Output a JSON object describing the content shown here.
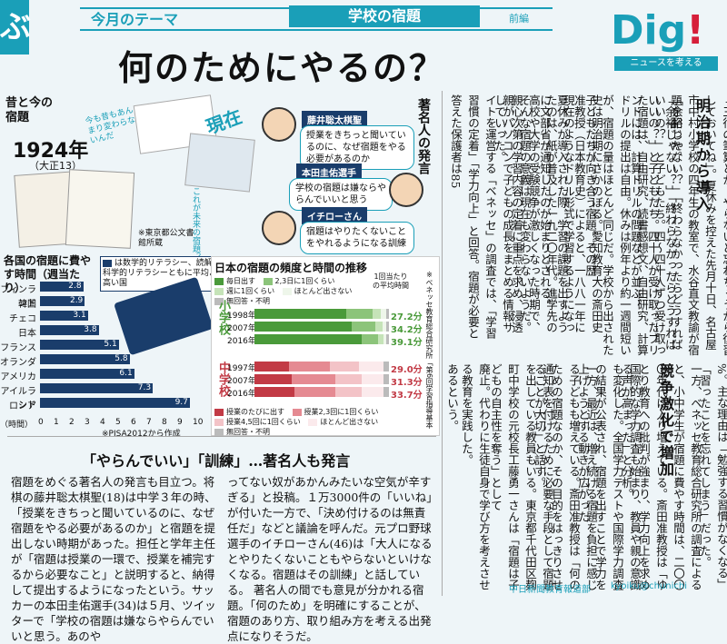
{
  "corner_char": "ぶ",
  "theme_label": "今月のテーマ",
  "topic_label": "学校の宿題",
  "part_label": "前編",
  "headline": "何のためにやるの？",
  "brand": {
    "name_main": "Di",
    "name_accent": "g",
    "bang": "!",
    "sub": "ニュースを考える"
  },
  "then_now": {
    "title": "昔と今の宿題",
    "year": "1924年",
    "era": "（大正13）",
    "now": "現在",
    "note_top": "今も昔もあんまり変わらないんだ",
    "note_future": "これが未来の宿題？",
    "source": "※東京都公文書館所蔵"
  },
  "famous": {
    "title": "著名人の発言",
    "people": [
      {
        "name": "藤井聡太棋聖",
        "quote": "授業をきちっと聞いているのに、なぜ宿題をやる必要があるのか"
      },
      {
        "name": "本田圭佑選手",
        "quote": "学校の宿題は嫌ならやらんでいいと思う"
      },
      {
        "name": "イチローさん",
        "quote": "宿題はやりたくないことをやれるようになる訓練"
      }
    ]
  },
  "intl_chart": {
    "title": "各国の宿題に費やす時間（週当たり）",
    "legend": "は数学的リテラシー、読解力、科学的リテラシーともに平均より高い国",
    "unit": "（時間）",
    "source": "※PISA2012から作成",
    "axis_ticks": [
      "0",
      "1",
      "2",
      "3",
      "4",
      "5",
      "6",
      "7",
      "8",
      "9",
      "10"
    ]
  },
  "chart_data": [
    {
      "type": "bar",
      "title": "各国の宿題に費やす時間（週当たり）",
      "orientation": "horizontal",
      "categories": [
        "フィンランド",
        "韓国",
        "チェコ",
        "日本",
        "フランス",
        "オランダ",
        "アメリカ",
        "アイルランド",
        "ロシア"
      ],
      "values": [
        2.8,
        2.9,
        3.1,
        3.8,
        5.1,
        5.8,
        6.1,
        7.3,
        9.7
      ],
      "labels": [
        "2.8",
        "2.9",
        "3.1",
        "3.8",
        "5.1",
        "5.8",
        "6.1",
        "7.3",
        "9.7"
      ],
      "xlabel": "（時間）",
      "xlim": [
        0,
        10
      ]
    },
    {
      "type": "bar",
      "title": "日本の宿題の頻度と時間の推移",
      "stacked": true,
      "groups": [
        {
          "name": "小学校",
          "years": [
            "1998年",
            "2007年",
            "2016年"
          ],
          "avg_minutes": [
            "27.2分",
            "34.2分",
            "39.1分"
          ]
        },
        {
          "name": "中学校",
          "years": [
            "1997年",
            "2007年",
            "2016年"
          ],
          "avg_minutes": [
            "29.0分",
            "31.3分",
            "33.7分"
          ]
        }
      ],
      "legend_elementary": [
        "毎日出す",
        "2,3日に1回くらい",
        "週に1回くらい",
        "ほとんど出さない",
        "無回答・不明"
      ],
      "legend_junior": [
        "授業のたびに出す",
        "授業2,3回に1回くらい",
        "授業4,5回に1回くらい",
        "ほとんど出さない",
        "無回答・不明"
      ],
      "avg_header": "1回当たりの平均時間",
      "note": "※ベネッセ教育総合研究所「第6回学習指導基本調査」から作成"
    }
  ],
  "bottom_article": {
    "headline": "「やらんでいい」「訓練」…著名人も発言",
    "paragraphs": [
      "宿題をめぐる著名人の発言も目立つ。将棋の藤井聡太棋聖(18)は中学３年の時、「授業をきちっと聞いているのに、なぜ宿題をやる必要があるのか」と宿題を提出しない時期があった。担任と学年主任が「宿題は授業の一環で、授業を補完するから必要なこと」と説明すると、納得して提出するようになったという。サッカーの本田圭佑選手(34)は５月、ツイッターで「学校の宿題は嫌ならやらんでいいと思う。あのや",
      "ってない奴があかんみたいな空気が辛すぎる」と投稿。１万3000件の「いいね」が付いた一方で、「決め付けるのは無責任だ」などと議論を呼んだ。元プロ野球選手のイチローさん(46)は「大人になるとやりたくないこともやらないといけなくなる。宿題はその訓練」と話している。",
      "著名人の間でも意見が分かれる宿題。「何のため」を明確にすることが、宿題のあり方、取り組み方を考える出発点になりそうだ。"
    ]
  },
  "columns": {
    "section1_head": "明治期から導入",
    "section2_head": "競争激化で増加",
    "col1": "「三行の筆算とか、やらないと忘れちゃうから復習しておいてね」。夏休みを控えた先月十日、名古屋市中村小学校の四年生の教室で、水谷直文教諭が宿題を配った。",
    "col2": "「余裕じゃない？」「終わらなかったらどうすればいいの？」と子どもたち。四十人が受け取ったプリントには、計算ドリルの問題などが並ぶ。",
    "col3": "「余裕じゃない？」「終わらなかったらどうすればいいの？」と子どもたち。四〜四十人ずつ受け取った宿題は、自由研究、読書感想文、自由研究、計算ドリルの提出は自由。休みは例年より約一週間短いが、宿題の量はほとんど同じだ。学校から出された子どもたちが向き合う宿題。その歴",
    "col4": "史は明治期にさかのぼる。愛知教育大の斎田史准教授（日本教育史）によると、一八八一年に夏休みが導入された際、学習の課題を出すように文部省が通知したのが始まりとされる。",
    "col5": "現在のようなドリル形式で学習するようになったのは、紙が普及した一九二〇年代。進学先の高校や大学の受験競争が激しくなった時期で、親心次第の学習内容の定着に重点を求め、浸透していった。",
    "col6": "そんな宿題の意義は現在も変わらないようだ。親がパソコンで子どもの成長をまとめる情報サイトを運営する「ベネッセ」の調査では、「学習習慣の定着」「学力向上」と回答。宿題が必要と答えた保護者は85",
    "col7": "%。主な理由は「勉強する習慣がなくなる」「習ったことを忘れてしまう」だった。",
    "col8": "一方、ベネッセ教育総合研究所の調査によると、小中学生が宿題に費やす時間は、二〇〇〇年代に入り増えている。斎田准教授は「ゆとり教育への批判が強まり、学力向上を求める声が高まった」と分析。",
    "col9": "国際的な学力調査も始まり、教員や親の意識も変化した。全国学力テストや国際学力調査の結果が公表され、宿題を出すことで学力を上げようとする動きが広がった",
    "col10": "一方、最近は、増え続ける宿題を負担に感じる子どもも増えている。斎田准教授は「何のための宿題なのか、その目的をはっきりさせることが大切」と話す。",
    "col11": "通知表を付けるために必要な手段として宿題を出している教員もいる。東京都千代田区麹町中学校の元校長工藤勇一さんは「宿題は子どもの自主性を奪う」として",
    "col12": "廃止。代わりに生徒自身で学び方を考えさせる教育を実践した。",
    "col13": "あるという。"
  },
  "footer": {
    "source": "中日新聞教育報道部",
    "site": "kyoiku@chunichi"
  }
}
